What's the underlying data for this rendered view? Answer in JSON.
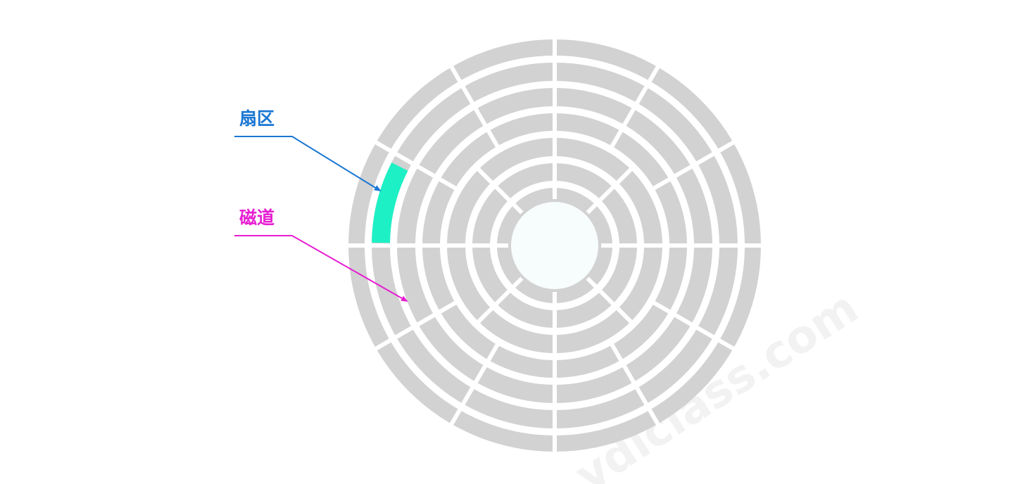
{
  "labels": {
    "sector": "扇区",
    "track": "磁道"
  },
  "watermark": "ydlclass.com",
  "colors": {
    "background": "#ffffff",
    "ring": "#d2d2d2",
    "hub": "#f7fcfc",
    "highlight_sector": "#1ef0c5",
    "sector_annotation": "#1a77d3",
    "track_annotation": "#e61ed2",
    "watermark": "#f2f2f2"
  },
  "disk": {
    "track_count": 8,
    "sectors_per_track": [
      12,
      12,
      12,
      12,
      8,
      8,
      8,
      8
    ],
    "highlighted_sector": {
      "track": 1,
      "sector": 10
    }
  }
}
